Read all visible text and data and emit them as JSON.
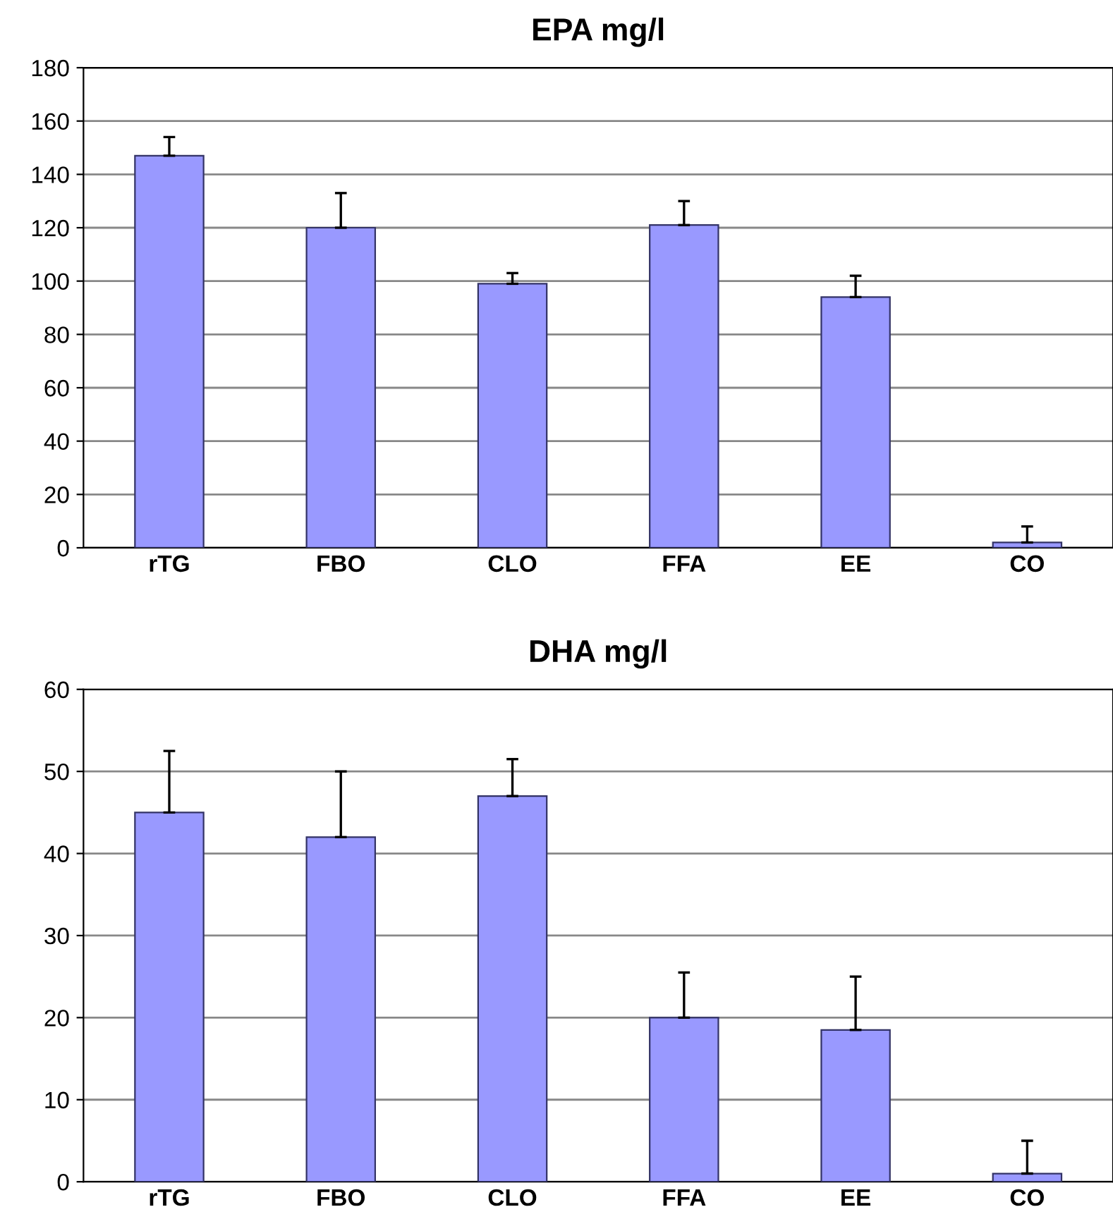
{
  "chart_data": [
    {
      "type": "bar",
      "title": "EPA mg/l",
      "categories": [
        "rTG",
        "FBO",
        "CLO",
        "FFA",
        "EE",
        "CO"
      ],
      "values": [
        147,
        120,
        99,
        121,
        94,
        2
      ],
      "errors": [
        [
          147,
          154
        ],
        [
          120,
          133
        ],
        [
          99,
          103
        ],
        [
          121,
          130
        ],
        [
          94,
          102
        ],
        [
          2,
          8
        ]
      ],
      "color": "#9999ff",
      "ylim": [
        0,
        180
      ],
      "yticks": [
        0,
        20,
        40,
        60,
        80,
        100,
        120,
        140,
        160,
        180
      ],
      "grid": "y"
    },
    {
      "type": "bar",
      "title": "DHA mg/l",
      "categories": [
        "rTG",
        "FBO",
        "CLO",
        "FFA",
        "EE",
        "CO"
      ],
      "values": [
        45,
        42,
        47,
        20,
        18.5,
        1
      ],
      "errors": [
        [
          45,
          52.5
        ],
        [
          42,
          50
        ],
        [
          47,
          51.5
        ],
        [
          20,
          25.5
        ],
        [
          18.5,
          25
        ],
        [
          1,
          5
        ]
      ],
      "color": "#9999ff",
      "ylim": [
        0,
        60
      ],
      "yticks": [
        0,
        10,
        20,
        30,
        40,
        50,
        60
      ],
      "grid": "y"
    }
  ]
}
